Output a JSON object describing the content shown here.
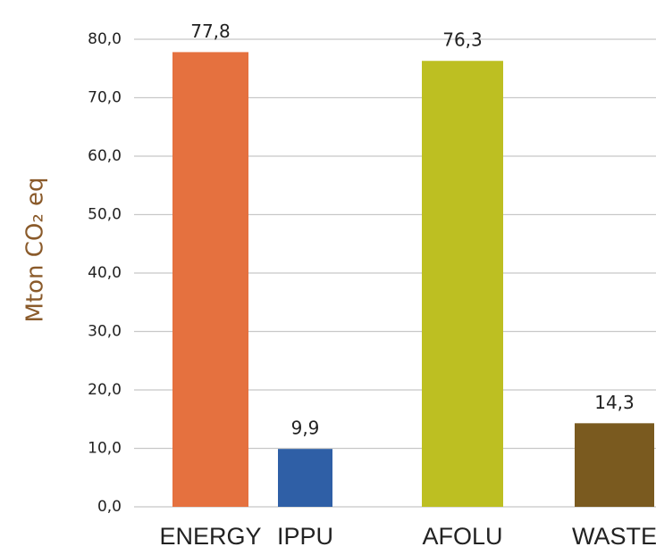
{
  "chart_data": {
    "type": "bar",
    "y_label": "Mton CO₂ eq",
    "categories": [
      "ENERGY",
      "IPPU",
      "AFOLU",
      "WASTE"
    ],
    "values": [
      77.8,
      9.9,
      76.3,
      14.3
    ],
    "value_labels": [
      "77,8",
      "9,9",
      "76,3",
      "14,3"
    ],
    "colors": [
      "#e5713f",
      "#2f5fa6",
      "#bdbf22",
      "#7a5a1f"
    ],
    "ylim": [
      0,
      80
    ],
    "yticks": [
      {
        "value": 0,
        "label": "0,0"
      },
      {
        "value": 10,
        "label": "10,0"
      },
      {
        "value": 20,
        "label": "20,0"
      },
      {
        "value": 30,
        "label": "30,0"
      },
      {
        "value": 40,
        "label": "40,0"
      },
      {
        "value": 50,
        "label": "50,0"
      },
      {
        "value": 60,
        "label": "60,0"
      },
      {
        "value": 70,
        "label": "70,0"
      },
      {
        "value": 80,
        "label": "80,0"
      }
    ],
    "grid": true
  }
}
